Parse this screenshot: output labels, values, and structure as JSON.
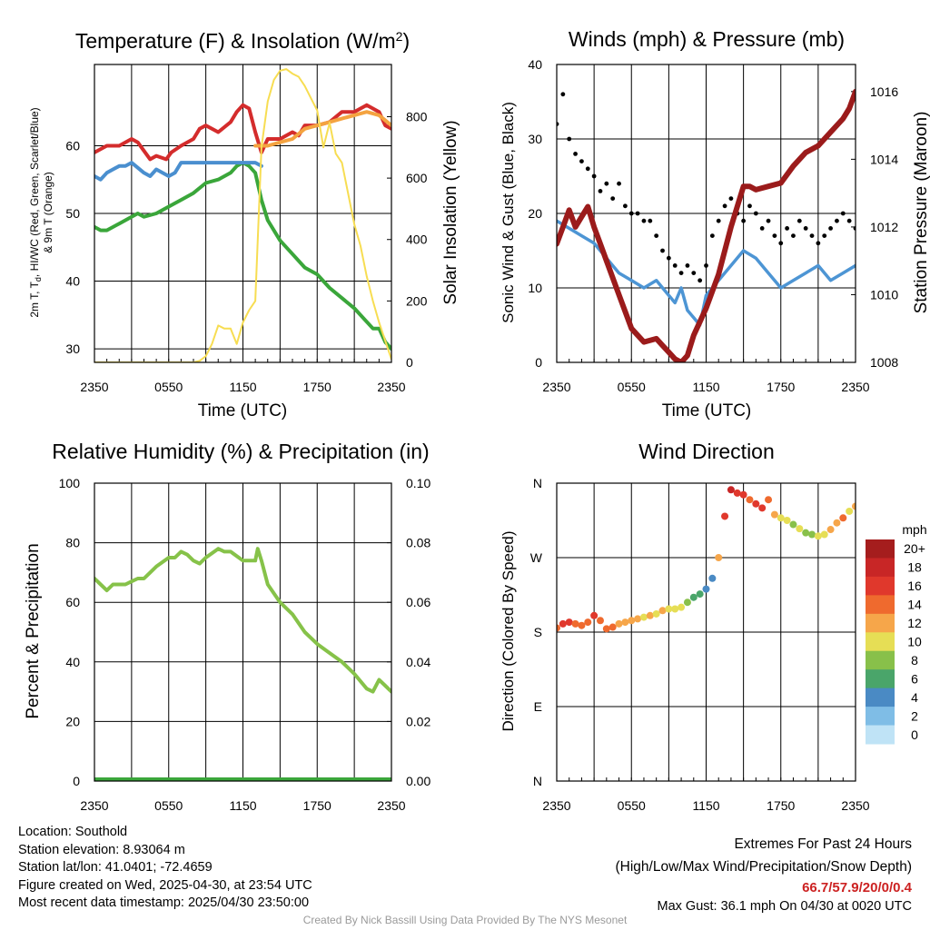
{
  "panels": {
    "temperature": {
      "title": "Temperature (F) & Insolation (W/m²)",
      "ylabel_left": "2m T, Td, HI/WC (Red, Green, Scarlet/Blue) & 9m T (Orange)",
      "ylabel_left_line1": "2m T, T",
      "ylabel_left_sub": "d",
      "ylabel_left_line1b": ", HI/WC (Red, Green, Scarlet/Blue)",
      "ylabel_left_line2": "& 9m T (Orange)",
      "ylabel_right": "Solar Insolation (Yellow)",
      "xlabel": "Time (UTC)"
    },
    "winds": {
      "title": "Winds (mph) & Pressure (mb)",
      "ylabel_left": "Sonic Wind & Gust (Blue, Black)",
      "ylabel_right": "Station Pressure (Maroon)",
      "xlabel": "Time (UTC)"
    },
    "humidity": {
      "title": "Relative Humidity (%) & Precipitation (in)",
      "ylabel_left": "Percent & Precipitation"
    },
    "direction": {
      "title": "Wind Direction",
      "ylabel_left": "Direction (Colored By Speed)",
      "colorbar_title": "mph",
      "colorbar_labels": [
        "20+",
        "18",
        "16",
        "14",
        "12",
        "10",
        "8",
        "6",
        "4",
        "2",
        "0"
      ],
      "colorbar_colors": [
        "#a51d1d",
        "#c82626",
        "#e0382c",
        "#ef6a2e",
        "#f6a64a",
        "#e6de55",
        "#88c04a",
        "#4aa56a",
        "#4a8ac4",
        "#7fbde6",
        "#bfe3f6"
      ]
    }
  },
  "colors": {
    "temp_red": "#d42c2c",
    "temp_orange": "#f4a340",
    "dewpoint_green": "#3aa63a",
    "wc_blue": "#4a8fcf",
    "insolation_yellow": "#f7dd52",
    "wind_blue": "#4d95d4",
    "gust_black": "#000000",
    "pressure_maroon": "#9b1b1b",
    "rh_green": "#86c249",
    "precip_green": "#3aa63a"
  },
  "chart_data": [
    {
      "type": "line",
      "title": "Temperature (F) & Insolation (W/m2)",
      "xlabel": "Time (UTC)",
      "x_ticks": [
        "2350",
        "0550",
        "1150",
        "1750",
        "2350"
      ],
      "y_left_ticks": [
        30,
        40,
        50,
        60
      ],
      "y_right_ticks": [
        0,
        200,
        400,
        600,
        800
      ],
      "ylim_left": [
        28,
        72
      ],
      "ylim_right": [
        0,
        970
      ],
      "x_hours_range": [
        0,
        24
      ],
      "series": [
        {
          "name": "2m T",
          "axis": "left",
          "color": "#d42c2c",
          "x": [
            0,
            1,
            2,
            3,
            3.5,
            4.5,
            5,
            5.8,
            6.2,
            7,
            8,
            8.5,
            9,
            10,
            11,
            11.5,
            12,
            12.5,
            13,
            13.5,
            14,
            15,
            16,
            16.5,
            17,
            18,
            19,
            20,
            21,
            21.5,
            22,
            23,
            23.5,
            24
          ],
          "values": [
            59,
            60,
            60,
            61,
            60.5,
            58,
            58.5,
            58,
            59,
            60,
            61,
            62.5,
            63,
            62,
            63.5,
            65,
            66,
            65.5,
            62,
            59,
            61,
            61,
            62,
            61.5,
            63,
            63,
            63.5,
            65,
            65,
            65.5,
            66,
            65,
            63,
            62.5
          ]
        },
        {
          "name": "9m T",
          "axis": "left",
          "color": "#f4a340",
          "x": [
            13,
            14,
            15,
            16,
            17,
            18,
            19,
            20,
            21,
            22,
            23,
            24
          ],
          "values": [
            60,
            60,
            60.5,
            61,
            62.5,
            63,
            63.5,
            64,
            64.5,
            65,
            64.5,
            63
          ]
        },
        {
          "name": "Td",
          "axis": "left",
          "color": "#3aa63a",
          "x": [
            0,
            0.5,
            1,
            2,
            3,
            3.5,
            4,
            5,
            6,
            7,
            8,
            9,
            10,
            11,
            11.5,
            12,
            12.5,
            13,
            13.5,
            14,
            15,
            16,
            17,
            18,
            19,
            20,
            21,
            22,
            22.5,
            23,
            23.5,
            24
          ],
          "values": [
            48,
            47.5,
            47.5,
            48.5,
            49.5,
            50,
            49.5,
            50,
            51,
            52,
            53,
            54.5,
            55,
            56,
            57,
            57.5,
            57,
            56,
            52,
            49,
            46,
            44,
            42,
            41,
            39,
            37.5,
            36,
            34,
            33,
            33,
            31,
            30
          ]
        },
        {
          "name": "HI/WC",
          "axis": "left",
          "color": "#4a8fcf",
          "x": [
            0,
            0.5,
            1,
            1.5,
            2,
            2.5,
            3,
            4,
            4.5,
            5,
            6,
            6.5,
            7,
            13,
            13.5
          ],
          "values": [
            55.5,
            55,
            56,
            56.5,
            57,
            57,
            57.5,
            56,
            55.5,
            56.5,
            55.5,
            56,
            57.5,
            57.5,
            57
          ]
        },
        {
          "name": "Solar Insolation",
          "axis": "right",
          "color": "#f7dd52",
          "x": [
            0,
            2,
            4,
            6,
            8,
            8.5,
            9,
            9.5,
            10,
            10.5,
            11,
            11.5,
            12,
            12.5,
            13,
            13.5,
            14,
            14.5,
            15,
            15.5,
            16,
            16.5,
            17,
            17.5,
            18,
            18.5,
            19,
            19.5,
            20,
            20.5,
            21,
            21.5,
            22,
            22.5,
            23,
            23.5,
            24
          ],
          "values": [
            0,
            0,
            0,
            0,
            0,
            5,
            20,
            60,
            120,
            110,
            110,
            60,
            130,
            170,
            200,
            700,
            850,
            920,
            950,
            955,
            940,
            930,
            900,
            860,
            820,
            700,
            780,
            680,
            650,
            550,
            450,
            380,
            280,
            200,
            130,
            70,
            10
          ]
        }
      ]
    },
    {
      "type": "line",
      "title": "Winds (mph) & Pressure (mb)",
      "xlabel": "Time (UTC)",
      "x_ticks": [
        "2350",
        "0550",
        "1150",
        "1750",
        "2350"
      ],
      "y_left_ticks": [
        0,
        10,
        20,
        30,
        40
      ],
      "y_right_ticks": [
        1008,
        1010,
        1012,
        1014,
        1016
      ],
      "ylim_left": [
        0,
        40
      ],
      "ylim_right": [
        1008,
        1016.8
      ],
      "x_hours_range": [
        0,
        24
      ],
      "series": [
        {
          "name": "Sonic Wind",
          "axis": "left",
          "color": "#4d95d4",
          "x": [
            0,
            1,
            2,
            3,
            4,
            5,
            6,
            7,
            8,
            9,
            9.5,
            10,
            10.5,
            11,
            11.5,
            12,
            13,
            14,
            15,
            16,
            17,
            18,
            19,
            20,
            21,
            22,
            23,
            24
          ],
          "values": [
            19,
            18,
            17,
            16,
            14,
            12,
            11,
            10,
            11,
            9,
            8,
            10,
            7,
            6,
            5,
            9,
            11,
            13,
            15,
            14,
            12,
            10,
            11,
            12,
            13,
            11,
            12,
            13
          ]
        },
        {
          "name": "Gust",
          "axis": "left",
          "color": "#000000",
          "style": "scatter",
          "x": [
            0,
            0.5,
            1,
            1.5,
            2,
            2.5,
            3,
            3.5,
            4,
            4.5,
            5,
            5.5,
            6,
            6.5,
            7,
            7.5,
            8,
            8.5,
            9,
            9.5,
            10,
            10.5,
            11,
            11.5,
            12,
            12.5,
            13,
            13.5,
            14,
            14.5,
            15,
            15.5,
            16,
            16.5,
            17,
            17.5,
            18,
            18.5,
            19,
            19.5,
            20,
            20.5,
            21,
            21.5,
            22,
            22.5,
            23,
            23.5,
            24
          ],
          "values": [
            32,
            36,
            30,
            28,
            27,
            26,
            25,
            23,
            24,
            22,
            24,
            21,
            20,
            20,
            19,
            19,
            17,
            15,
            14,
            13,
            12,
            13,
            12,
            11,
            13,
            17,
            19,
            21,
            22,
            20,
            19,
            21,
            20,
            18,
            19,
            17,
            16,
            18,
            17,
            19,
            18,
            17,
            16,
            17,
            18,
            19,
            20,
            19,
            18
          ]
        },
        {
          "name": "Station Pressure",
          "axis": "right",
          "color": "#9b1b1b",
          "x": [
            0,
            0.5,
            1,
            1.5,
            2,
            2.5,
            3,
            3.5,
            4,
            5,
            5.5,
            6,
            7,
            8,
            8.5,
            9,
            9.5,
            10,
            10.5,
            11,
            12,
            13,
            14,
            15,
            15.5,
            16,
            17,
            18,
            19,
            20,
            21,
            22,
            23,
            23.5,
            24
          ],
          "values": [
            1011.5,
            1012,
            1012.5,
            1012,
            1012.3,
            1012.6,
            1012,
            1011.5,
            1011,
            1010,
            1009.5,
            1009,
            1008.6,
            1008.7,
            1008.5,
            1008.3,
            1008.1,
            1008,
            1008.2,
            1008.8,
            1009.6,
            1010.6,
            1012,
            1013.2,
            1013.2,
            1013.1,
            1013.2,
            1013.3,
            1013.8,
            1014.2,
            1014.4,
            1014.8,
            1015.2,
            1015.5,
            1016
          ]
        }
      ]
    },
    {
      "type": "line",
      "title": "Relative Humidity (%) & Precipitation (in)",
      "xlabel": "",
      "x_ticks": [
        "2350",
        "0550",
        "1150",
        "1750",
        "2350"
      ],
      "y_left_ticks": [
        0,
        20,
        40,
        60,
        80,
        100
      ],
      "y_right_ticks": [
        "0.00",
        "0.02",
        "0.04",
        "0.06",
        "0.08",
        "0.10"
      ],
      "ylim_left": [
        0,
        100
      ],
      "ylim_right": [
        0,
        0.1
      ],
      "x_hours_range": [
        0,
        24
      ],
      "series": [
        {
          "name": "Relative Humidity",
          "axis": "left",
          "color": "#86c249",
          "x": [
            0,
            0.5,
            1,
            1.5,
            2,
            2.5,
            3,
            3.5,
            4,
            4.5,
            5,
            6,
            6.5,
            7,
            7.5,
            8,
            8.5,
            9,
            10,
            10.5,
            11,
            12,
            13,
            13.2,
            13.5,
            14,
            15,
            16,
            17,
            18,
            19,
            20,
            21,
            22,
            22.5,
            23,
            23.5,
            24
          ],
          "values": [
            68,
            66,
            64,
            66,
            66,
            66,
            67,
            68,
            68,
            70,
            72,
            75,
            75,
            77,
            76,
            74,
            73,
            75,
            78,
            77,
            77,
            74,
            74,
            78,
            74,
            66,
            60,
            56,
            50,
            46,
            43,
            40,
            36,
            31,
            30,
            34,
            32,
            30
          ]
        },
        {
          "name": "Precipitation",
          "axis": "right",
          "color": "#3aa63a",
          "x": [
            0,
            24
          ],
          "values": [
            0,
            0
          ]
        }
      ]
    },
    {
      "type": "scatter",
      "title": "Wind Direction",
      "xlabel": "",
      "x_ticks": [
        "2350",
        "0550",
        "1150",
        "1750",
        "2350"
      ],
      "y_ticks": [
        "N",
        "E",
        "S",
        "W",
        "N"
      ],
      "ylim": [
        0,
        360
      ],
      "x_hours_range": [
        0,
        24
      ],
      "colorbar_unit": "mph",
      "series": [
        {
          "name": "Direction",
          "x": [
            0,
            0.5,
            1,
            1.5,
            2,
            2.5,
            3,
            3.5,
            4,
            4.5,
            5,
            5.5,
            6,
            6.5,
            7,
            7.5,
            8,
            8.5,
            9,
            9.5,
            10,
            10.5,
            11,
            11.5,
            12,
            12.5,
            13,
            13.5,
            14,
            14.5,
            15,
            15.5,
            16,
            16.5,
            17,
            17.5,
            18,
            18.5,
            19,
            19.5,
            20,
            20.5,
            21,
            21.5,
            22,
            22.5,
            23,
            23.5,
            24
          ],
          "values": [
            185,
            190,
            192,
            190,
            188,
            192,
            200,
            194,
            184,
            186,
            190,
            192,
            194,
            196,
            198,
            200,
            202,
            206,
            208,
            208,
            210,
            216,
            222,
            226,
            232,
            245,
            270,
            320,
            352,
            348,
            346,
            340,
            335,
            330,
            340,
            322,
            318,
            315,
            310,
            305,
            300,
            298,
            296,
            298,
            304,
            312,
            318,
            326,
            332
          ],
          "speeds": [
            15,
            16,
            16,
            15,
            14,
            15,
            16,
            14,
            15,
            14,
            13,
            12,
            13,
            12,
            11,
            12,
            11,
            12,
            10,
            11,
            10,
            8,
            7,
            6,
            5,
            4,
            13,
            16,
            18,
            17,
            16,
            15,
            17,
            16,
            14,
            12,
            10,
            11,
            9,
            10,
            8,
            9,
            10,
            11,
            12,
            13,
            14,
            11,
            12
          ]
        }
      ]
    }
  ],
  "info": {
    "location": "Location: Southold",
    "elevation": "Station elevation: 8.93064 m",
    "latlon": "Station lat/lon: 41.0401; -72.4659",
    "created": "Figure created on Wed, 2025-04-30, at 23:54 UTC",
    "recent": "Most recent data timestamp: 2025/04/30 23:50:00",
    "extremes_title": "Extremes For Past 24 Hours",
    "extremes_legend": "(High/Low/Max Wind/Precipitation/Snow Depth)",
    "extremes_values": "66.7/57.9/20/0/0.4",
    "max_gust": "Max Gust: 36.1 mph On 04/30 at 0020 UTC",
    "credit": "Created By Nick Bassill Using Data Provided By The NYS Mesonet"
  }
}
